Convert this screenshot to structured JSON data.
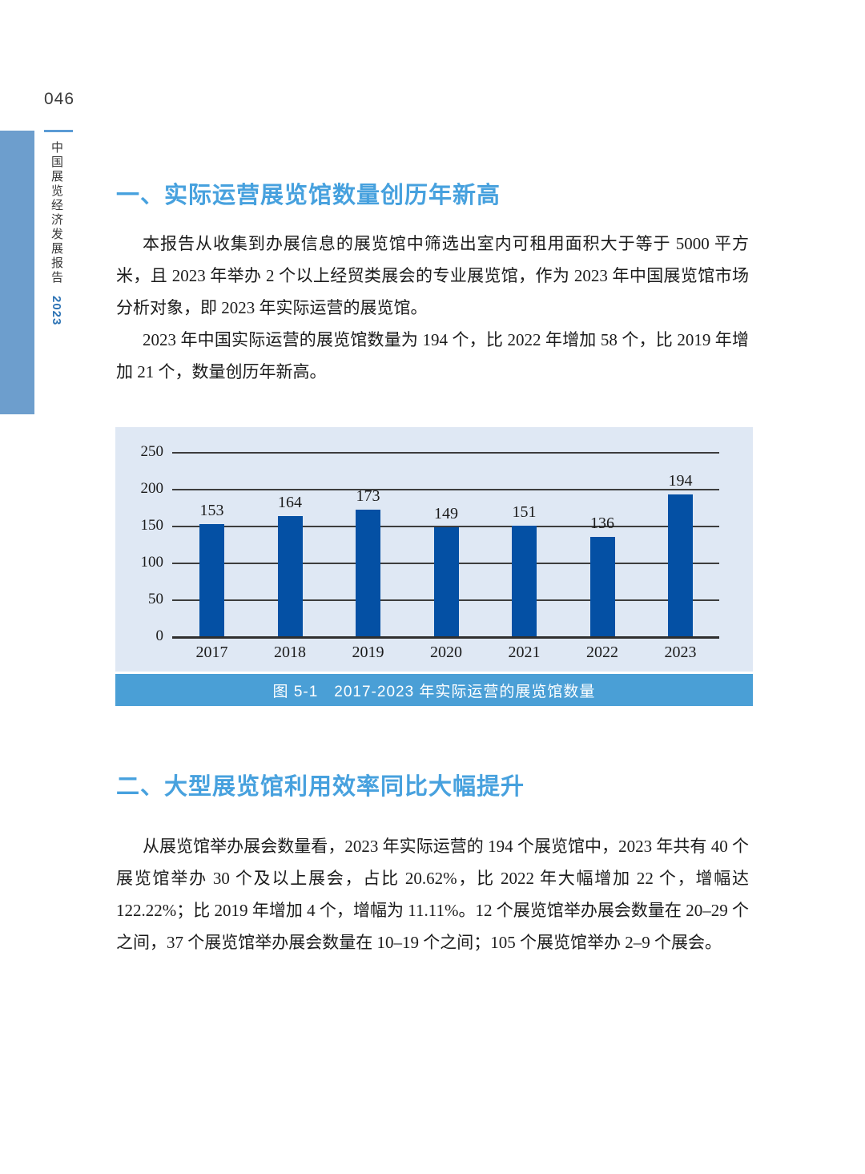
{
  "page": {
    "number": "046",
    "spine_title": "中国展览经济发展报告",
    "spine_year": "2023"
  },
  "section1": {
    "heading": "一、实际运营展览馆数量创历年新高",
    "para1": "本报告从收集到办展信息的展览馆中筛选出室内可租用面积大于等于 5000 平方米，且 2023 年举办 2 个以上经贸类展会的专业展览馆，作为 2023 年中国展览馆市场分析对象，即 2023 年实际运营的展览馆。",
    "para2": "2023 年中国实际运营的展览馆数量为 194 个，比 2022 年增加 58 个，比 2019 年增加 21 个，数量创历年新高。"
  },
  "chart_data": {
    "type": "bar",
    "categories": [
      "2017",
      "2018",
      "2019",
      "2020",
      "2021",
      "2022",
      "2023"
    ],
    "values": [
      153,
      164,
      173,
      149,
      151,
      136,
      194
    ],
    "title": "图 5-1　2017-2023 年实际运营的展览馆数量",
    "xlabel": "",
    "ylabel": "",
    "ylim": [
      0,
      250
    ],
    "ytick_interval": 50,
    "grid": true,
    "legend": "none",
    "bar_color": "#0450a4",
    "plot_bg": "#dfe8f4",
    "caption_bg": "#4a9fd6"
  },
  "section2": {
    "heading": "二、大型展览馆利用效率同比大幅提升",
    "para1": "从展览馆举办展会数量看，2023 年实际运营的 194 个展览馆中，2023 年共有 40 个展览馆举办 30 个及以上展会，占比 20.62%，比 2022 年大幅增加 22 个，增幅达 122.22%；比 2019 年增加 4 个，增幅为 11.11%。12 个展览馆举办展会数量在 20–29 个之间，37 个展览馆举办展会数量在 10–19 个之间；105 个展览馆举办 2–9 个展会。"
  }
}
